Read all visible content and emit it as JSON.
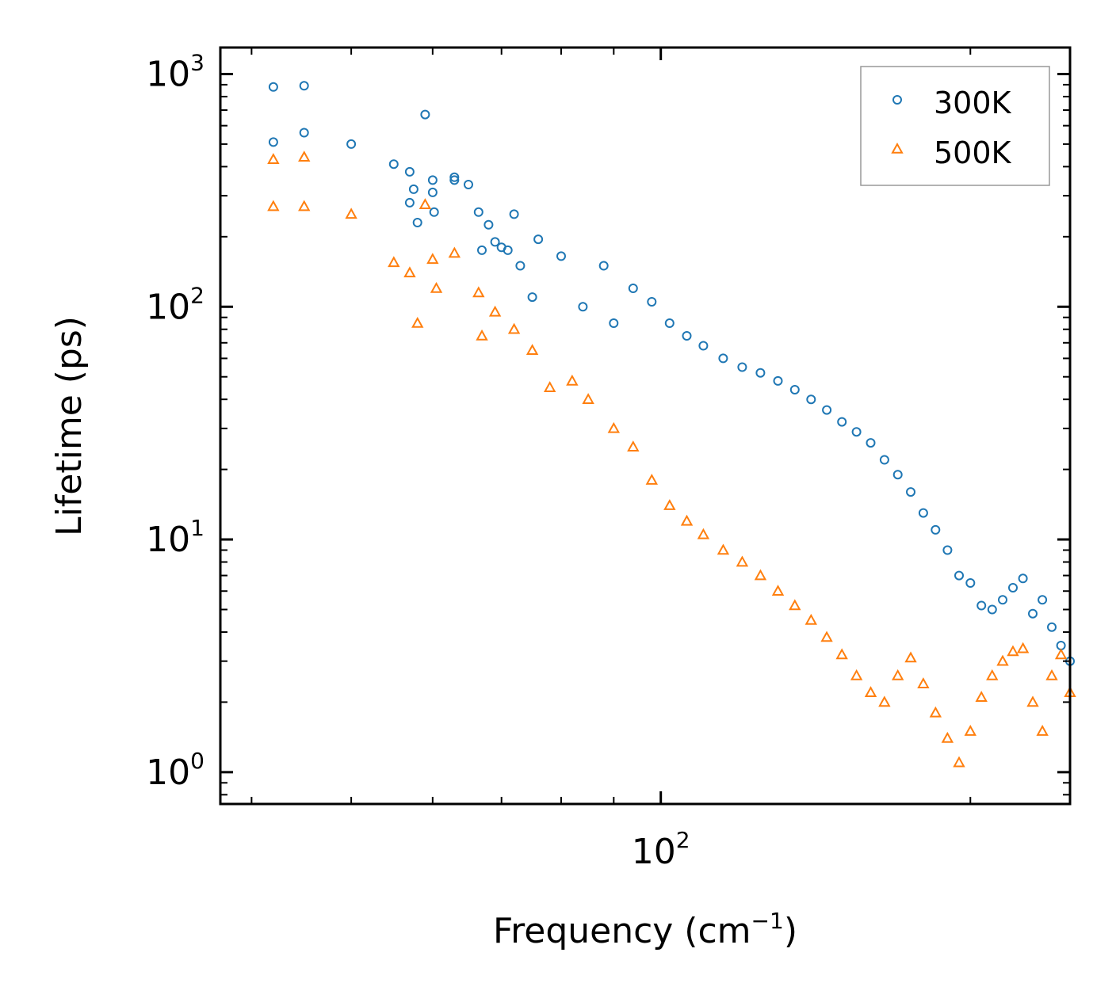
{
  "chart_data": {
    "type": "scatter",
    "xscale": "log",
    "yscale": "log",
    "xlim": [
      37.3,
      250
    ],
    "ylim": [
      0.73,
      1300
    ],
    "xlabel": "Frequency (cm",
    "xlabel_sup": "−1",
    "xlabel_close": ")",
    "ylabel": "Lifetime (ps)",
    "x_ticks": [
      {
        "base": "10",
        "exp": "2",
        "value": 100
      }
    ],
    "y_ticks": [
      {
        "base": "10",
        "exp": "0",
        "value": 1
      },
      {
        "base": "10",
        "exp": "1",
        "value": 10
      },
      {
        "base": "10",
        "exp": "2",
        "value": 100
      },
      {
        "base": "10",
        "exp": "3",
        "value": 1000
      }
    ],
    "legend_position": "top-right",
    "colors": {
      "300K": "#1f77b4",
      "500K": "#ff7f0e"
    },
    "series": [
      {
        "name": "300K",
        "marker": "circle",
        "color": "#1f77b4",
        "points": [
          [
            42,
            880
          ],
          [
            42,
            510
          ],
          [
            45,
            890
          ],
          [
            45,
            560
          ],
          [
            50,
            500
          ],
          [
            55,
            410
          ],
          [
            57,
            380
          ],
          [
            57,
            280
          ],
          [
            57.5,
            320
          ],
          [
            58,
            230
          ],
          [
            59,
            670
          ],
          [
            60,
            350
          ],
          [
            60,
            310
          ],
          [
            60.2,
            255
          ],
          [
            63,
            360
          ],
          [
            63,
            350
          ],
          [
            65,
            335
          ],
          [
            66.5,
            255
          ],
          [
            67,
            175
          ],
          [
            68,
            225
          ],
          [
            69,
            190
          ],
          [
            70,
            180
          ],
          [
            71,
            175
          ],
          [
            72,
            250
          ],
          [
            73,
            150
          ],
          [
            75,
            110
          ],
          [
            76,
            195
          ],
          [
            80,
            165
          ],
          [
            84,
            100
          ],
          [
            88,
            150
          ],
          [
            90,
            85
          ],
          [
            94,
            120
          ],
          [
            98,
            105
          ],
          [
            102,
            85
          ],
          [
            106,
            75
          ],
          [
            110,
            68
          ],
          [
            115,
            60
          ],
          [
            120,
            55
          ],
          [
            125,
            52
          ],
          [
            130,
            48
          ],
          [
            135,
            44
          ],
          [
            140,
            40
          ],
          [
            145,
            36
          ],
          [
            150,
            32
          ],
          [
            155,
            29
          ],
          [
            160,
            26
          ],
          [
            165,
            22
          ],
          [
            170,
            19
          ],
          [
            175,
            16
          ],
          [
            180,
            13
          ],
          [
            185,
            11
          ],
          [
            190,
            9
          ],
          [
            195,
            7
          ],
          [
            200,
            6.5
          ],
          [
            205,
            5.2
          ],
          [
            210,
            5
          ],
          [
            215,
            5.5
          ],
          [
            220,
            6.2
          ],
          [
            225,
            6.8
          ],
          [
            230,
            4.8
          ],
          [
            235,
            5.5
          ],
          [
            240,
            4.2
          ],
          [
            245,
            3.5
          ],
          [
            250,
            3
          ]
        ]
      },
      {
        "name": "500K",
        "marker": "triangle",
        "color": "#ff7f0e",
        "points": [
          [
            42,
            430
          ],
          [
            42,
            270
          ],
          [
            45,
            440
          ],
          [
            45,
            270
          ],
          [
            50,
            250
          ],
          [
            55,
            155
          ],
          [
            57,
            140
          ],
          [
            58,
            85
          ],
          [
            59,
            275
          ],
          [
            60,
            160
          ],
          [
            60.5,
            120
          ],
          [
            63,
            170
          ],
          [
            66.5,
            115
          ],
          [
            67,
            75
          ],
          [
            69,
            95
          ],
          [
            72,
            80
          ],
          [
            75,
            65
          ],
          [
            78,
            45
          ],
          [
            82,
            48
          ],
          [
            85,
            40
          ],
          [
            90,
            30
          ],
          [
            94,
            25
          ],
          [
            98,
            18
          ],
          [
            102,
            14
          ],
          [
            106,
            12
          ],
          [
            110,
            10.5
          ],
          [
            115,
            9
          ],
          [
            120,
            8
          ],
          [
            125,
            7
          ],
          [
            130,
            6
          ],
          [
            135,
            5.2
          ],
          [
            140,
            4.5
          ],
          [
            145,
            3.8
          ],
          [
            150,
            3.2
          ],
          [
            155,
            2.6
          ],
          [
            160,
            2.2
          ],
          [
            165,
            2.0
          ],
          [
            170,
            2.6
          ],
          [
            175,
            3.1
          ],
          [
            180,
            2.4
          ],
          [
            185,
            1.8
          ],
          [
            190,
            1.4
          ],
          [
            195,
            1.1
          ],
          [
            200,
            1.5
          ],
          [
            205,
            2.1
          ],
          [
            210,
            2.6
          ],
          [
            215,
            3.0
          ],
          [
            220,
            3.3
          ],
          [
            225,
            3.4
          ],
          [
            230,
            2.0
          ],
          [
            235,
            1.5
          ],
          [
            240,
            2.6
          ],
          [
            245,
            3.2
          ],
          [
            250,
            2.2
          ]
        ]
      }
    ]
  }
}
